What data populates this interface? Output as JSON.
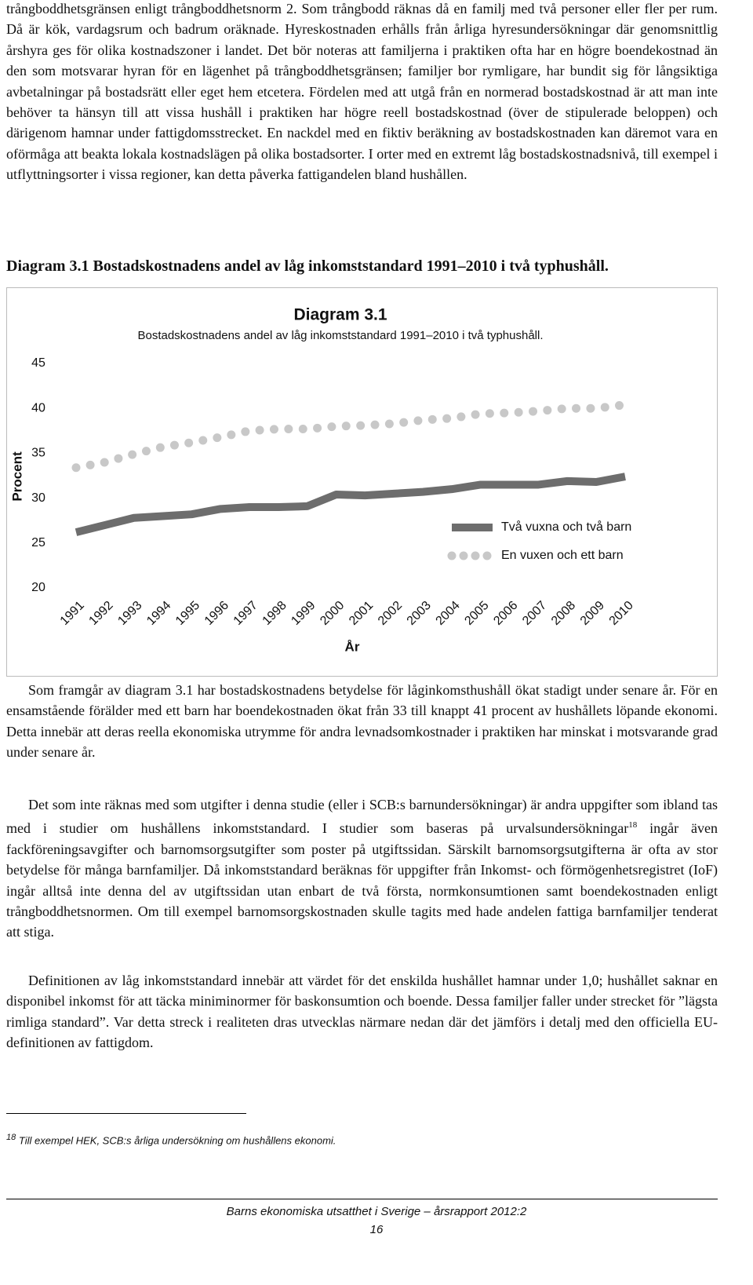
{
  "paragraphs": [
    "trångboddhetsgränsen enligt trångboddhetsnorm 2. Som trångbodd räknas då en familj med två personer eller fler per rum. Då är kök, vardagsrum och badrum oräknade. Hyreskostnaden erhålls från årliga hyresundersökningar där genomsnittlig årshyra ges för olika kostnadszoner i landet. Det bör noteras att familjerna i praktiken ofta har en högre boendekostnad än den som motsvarar hyran för en lägenhet på trångboddhetsgränsen; familjer bor rymligare, har bundit sig för långsiktiga avbetalningar på bostadsrätt eller eget hem etcetera. Fördelen med att utgå från en normerad bostadskostnad är att man inte behöver ta hänsyn till att vissa hushåll i praktiken har högre reell bostadskostnad (över de stipulerade beloppen) och därigenom hamnar under fattigdomsstrecket. En nackdel med en fiktiv beräkning av bostadskostnaden kan däremot vara en oförmåga att beakta lokala kostnadslägen på olika bostadsorter. I orter med en extremt låg bostadskostnadsnivå, till exempel i utflyttningsorter i vissa regioner, kan detta påverka fattigandelen bland hushållen.",
    "Som framgår av diagram 3.1 har bostadskostnadens betydelse för låginkomsthushåll ökat stadigt under senare år. För en ensamstående förälder med ett barn har boendekostnaden ökat från 33 till knappt 41 procent av hushållets löpande ekonomi. Detta innebär att deras reella ekonomiska utrymme för andra levnadsomkostnader i praktiken har minskat i motsvarande grad under senare år.",
    "Definitionen av låg inkomststandard innebär att värdet för det enskilda hushållet hamnar under 1,0; hushållet saknar en disponibel inkomst för att täcka miniminormer för baskonsumtion och boende. Dessa familjer faller under strecket för ”lägsta rimliga standard”. Var detta streck i realiteten dras utvecklas närmare nedan där det jämförs i detalj med den officiella EU-definitionen av fattigdom."
  ],
  "caption": "Diagram 3.1 Bostadskostnadens andel av låg inkomststandard 1991–2010 i två typhushåll.",
  "paragraph_with_note": {
    "before": "Det som inte räknas med som utgifter i denna studie (eller i SCB:s barnundersökningar) är andra uppgifter som ibland tas med i studier om hushållens inkomststandard. I studier som baseras på urvalsundersökningar",
    "ref": "18",
    "after": " ingår även fackföreningsavgifter och barnomsorgsutgifter som poster på utgiftssidan. Särskilt barnomsorgsutgifterna är ofta av stor betydelse för många barnfamiljer. Då inkomststandard beräknas för uppgifter från Inkomst- och förmögenhetsregistret (IoF) ingår alltså inte denna del av utgiftssidan utan enbart de två första, normkonsumtionen samt boendekostnaden enligt trångboddhetsnormen. Om till exempel barnomsorgskostnaden skulle tagits med hade andelen fattiga barnfamiljer tenderat att stiga."
  },
  "footnote": {
    "number": "18",
    "text": "Till exempel HEK, SCB:s årliga undersökning om hushållens ekonomi."
  },
  "footer": {
    "title": "Barns ekonomiska utsatthet i Sverige – årsrapport 2012:2",
    "page": "16"
  },
  "chart_data": {
    "type": "line",
    "title": "Diagram 3.1",
    "subtitle": "Bostadskostnadens andel av låg inkomststandard 1991–2010 i två typhushåll.",
    "xlabel": "År",
    "ylabel": "Procent",
    "categories": [
      "1991",
      "1992",
      "1993",
      "1994",
      "1995",
      "1996",
      "1997",
      "1998",
      "1999",
      "2000",
      "2001",
      "2002",
      "2003",
      "2004",
      "2005",
      "2006",
      "2007",
      "2008",
      "2009",
      "2010"
    ],
    "series": [
      {
        "name": "Två vuxna och två barn",
        "color": "#6d6d6d",
        "style": "solid",
        "values": [
          26.2,
          27.0,
          27.8,
          28.0,
          28.2,
          28.8,
          29.0,
          29.0,
          29.1,
          30.4,
          30.3,
          30.5,
          30.7,
          31.0,
          31.5,
          31.5,
          31.5,
          31.9,
          31.8,
          32.4
        ]
      },
      {
        "name": "En vuxen och ett barn",
        "color": "#c8c8c8",
        "style": "dotted",
        "values": [
          33.4,
          34.0,
          34.9,
          35.7,
          36.2,
          36.8,
          37.5,
          37.7,
          37.7,
          38.0,
          38.1,
          38.3,
          38.7,
          38.9,
          39.4,
          39.5,
          39.7,
          40.0,
          40.0,
          40.4
        ]
      }
    ],
    "ylim": [
      20,
      45
    ],
    "yticks": [
      20,
      25,
      30,
      35,
      40,
      45
    ],
    "grid": false,
    "legend": "right"
  }
}
